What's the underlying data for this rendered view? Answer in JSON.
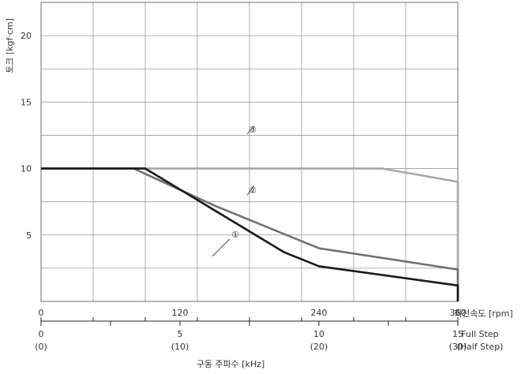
{
  "chart_data": {
    "type": "line",
    "x_unit_label": "회전속도 [rpm]",
    "y_label": "토크 [kgf·cm]",
    "freq_label": "구동 주파수 [kHz]",
    "full_step_label": "Full Step",
    "half_step_label": "(Half Step)",
    "xlim": [
      0,
      360
    ],
    "ylim": [
      0,
      22.5
    ],
    "x_ticks": [
      0,
      120,
      240,
      360
    ],
    "y_ticks": [
      5,
      10,
      15,
      20
    ],
    "freq_ticks": [
      {
        "rpm": 0,
        "full": "0",
        "half": "(0)"
      },
      {
        "rpm": 120,
        "full": "5",
        "half": "(10)"
      },
      {
        "rpm": 240,
        "full": "10",
        "half": "(20)"
      },
      {
        "rpm": 360,
        "full": "15",
        "half": "(30)"
      }
    ],
    "series": [
      {
        "name": "①",
        "color": "#1a1a1a",
        "points": [
          [
            0,
            10.0
          ],
          [
            90,
            10.0
          ],
          [
            210,
            3.7
          ],
          [
            240,
            2.65
          ],
          [
            360,
            1.2
          ]
        ],
        "drop_to": 0,
        "label_at": [
          148,
          3.4
        ],
        "leader_to": [
          163,
          4.7
        ]
      },
      {
        "name": "②",
        "color": "#707070",
        "points": [
          [
            0,
            10.0
          ],
          [
            80,
            10.0
          ],
          [
            150,
            7.2
          ],
          [
            240,
            4.0
          ],
          [
            360,
            2.4
          ]
        ],
        "drop_to": 0,
        "label_at": [
          184,
          8.7
        ],
        "leader_to": [
          178,
          8.0
        ]
      },
      {
        "name": "③",
        "color": "#a8a8a8",
        "points": [
          [
            0,
            10.0
          ],
          [
            295,
            10.0
          ],
          [
            360,
            9.0
          ]
        ],
        "drop_to": 0,
        "label_at": [
          184,
          13.2
        ],
        "leader_to": [
          178,
          12.6
        ]
      }
    ]
  }
}
